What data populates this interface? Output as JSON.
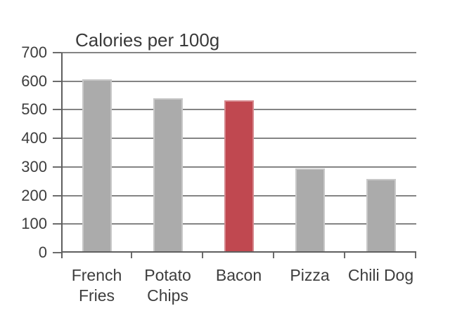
{
  "chart_data": {
    "type": "bar",
    "title": "Calories per 100g",
    "categories": [
      "French Fries",
      "Potato Chips",
      "Bacon",
      "Pizza",
      "Chili Dog"
    ],
    "values": [
      607,
      540,
      533,
      296,
      258
    ],
    "bar_colors": [
      "#ABABAB",
      "#ABABAB",
      "#C04850",
      "#ABABAB",
      "#ABABAB"
    ],
    "highlighted_category": "Bacon",
    "category_label_lines": [
      [
        "French",
        "Fries"
      ],
      [
        "Potato",
        "Chips"
      ],
      [
        "Bacon"
      ],
      [
        "Pizza"
      ],
      [
        "Chili Dog"
      ]
    ],
    "xlabel": "",
    "ylabel": "",
    "ylim": [
      0,
      700
    ],
    "yticks": [
      0,
      100,
      200,
      300,
      400,
      500,
      600,
      700
    ],
    "grid": true,
    "legend": false,
    "colors": {
      "bar_default": "#ABABAB",
      "bar_highlight": "#C04850",
      "gridline": "#848484",
      "axis": "#5f5f5f",
      "text": "#3d3d3d",
      "background": "#ffffff"
    }
  }
}
